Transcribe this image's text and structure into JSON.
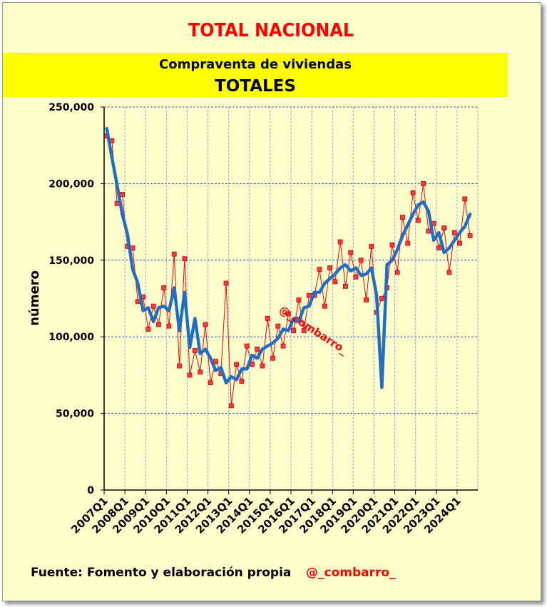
{
  "title": "TOTAL NACIONAL",
  "subtitle": "Compraventa de viviendas",
  "subtitle2": "TOTALES",
  "footer": {
    "source": "Fuente: Fomento y elaboración propia",
    "handle": "@_combarro_"
  },
  "watermark": "@_combarro_",
  "colors": {
    "background": "#ffffcc",
    "band": "#ffff00",
    "title": "#ff0000",
    "raw_series": "#ff0000",
    "trend_series": "#1f6fc5",
    "grid": "#2f5fc8"
  },
  "chart_data": {
    "type": "line",
    "ylabel": "número",
    "xlabel": "",
    "ylim": [
      0,
      250000
    ],
    "yticks": [
      0,
      50000,
      100000,
      150000,
      200000,
      250000
    ],
    "ytick_labels": [
      "0",
      "50,000",
      "100,000",
      "150,000",
      "200,000",
      "250,000"
    ],
    "xtick_labels": [
      "2007Q1",
      "2008Q1",
      "2009Q1",
      "2010Q1",
      "2011Q1",
      "2012Q1",
      "2013Q1",
      "2014Q1",
      "2015Q1",
      "2016Q1",
      "2017Q1",
      "2018Q1",
      "2019Q1",
      "2020Q1",
      "2021Q1",
      "2022Q1",
      "2023Q1",
      "2024Q1"
    ],
    "grid": true,
    "series": [
      {
        "values": [
          231000,
          228000,
          187000,
          193000,
          159000,
          158000,
          123000,
          126000,
          105000,
          120000,
          108000,
          132000,
          107000,
          154000,
          81000,
          151000,
          75000,
          91000,
          77000,
          108000,
          70000,
          84000,
          76000,
          135000,
          55000,
          82000,
          71000,
          94000,
          82000,
          92000,
          81000,
          112000,
          86000,
          107000,
          94000,
          115000,
          104000,
          124000,
          104000,
          127000,
          127000,
          144000,
          120000,
          145000,
          136000,
          162000,
          133000,
          155000,
          139000,
          150000,
          124000,
          159000,
          116000,
          125000,
          132000,
          160000,
          142000,
          178000,
          161000,
          194000,
          176000,
          200000,
          169000,
          174000,
          158000,
          171000,
          142000,
          168000,
          161000,
          190000,
          166000
        ]
      },
      {
        "values": [
          236000,
          217000,
          199000,
          180000,
          167000,
          144000,
          135000,
          117000,
          119000,
          110000,
          119000,
          120000,
          117000,
          132000,
          104000,
          129000,
          93000,
          112000,
          89000,
          92000,
          86000,
          78000,
          80000,
          70000,
          74000,
          72000,
          79000,
          79000,
          88000,
          86000,
          92000,
          94000,
          96000,
          99000,
          105000,
          104000,
          112000,
          110000,
          119000,
          120000,
          129000,
          129000,
          135000,
          138000,
          141000,
          145000,
          147000,
          143000,
          145000,
          140000,
          141000,
          145000,
          127000,
          67000,
          147000,
          150000,
          157000,
          166000,
          173000,
          180000,
          186000,
          188000,
          182000,
          163000,
          168000,
          155000,
          158000,
          163000,
          168000,
          172000,
          180000
        ]
      }
    ]
  }
}
